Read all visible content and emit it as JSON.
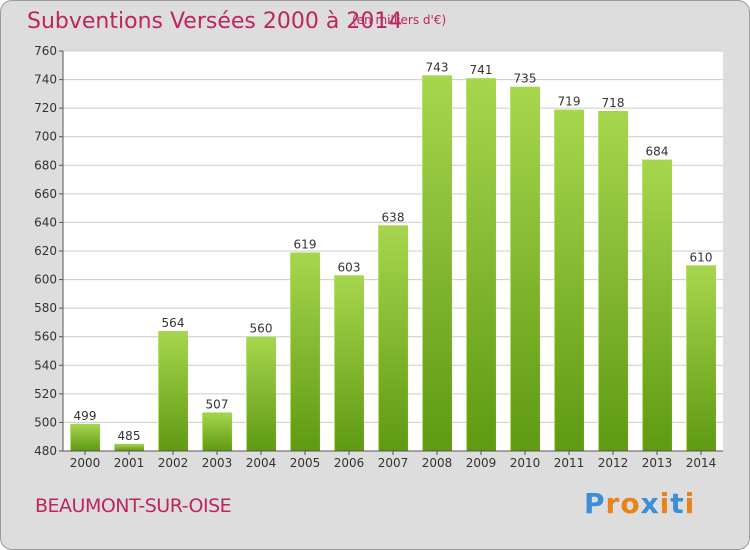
{
  "chart_data": {
    "type": "bar",
    "title": "Subventions Versées 2000 à 2014",
    "subtitle": "(en milliers d'€)",
    "xlabel": "",
    "ylabel": "",
    "categories": [
      "2000",
      "2001",
      "2002",
      "2003",
      "2004",
      "2005",
      "2006",
      "2007",
      "2008",
      "2009",
      "2010",
      "2011",
      "2012",
      "2013",
      "2014"
    ],
    "values": [
      499,
      485,
      564,
      507,
      560,
      619,
      603,
      638,
      743,
      741,
      735,
      719,
      718,
      684,
      610
    ],
    "ylim": [
      480,
      760
    ],
    "yticks": [
      480,
      500,
      520,
      540,
      560,
      580,
      600,
      620,
      640,
      660,
      680,
      700,
      720,
      740,
      760
    ],
    "grid": true,
    "legend": "none"
  },
  "location": "BEAUMONT-SUR-OISE",
  "logo": {
    "text": "Proxiti",
    "letter_colors": [
      "#3b8fd6",
      "#e8831c",
      "#e8831c",
      "#3b8fd6",
      "#e8831c",
      "#3b8fd6",
      "#e8831c"
    ]
  },
  "colors": {
    "background": "#dddddd",
    "plot_background": "#ffffff",
    "bar_top": "#a6d64e",
    "bar_bottom": "#5f9a12",
    "title": "#c0245f",
    "grid": "#cccccc",
    "axis": "#555555"
  }
}
